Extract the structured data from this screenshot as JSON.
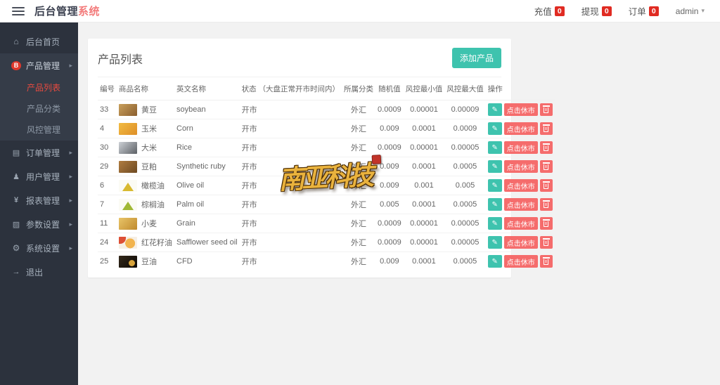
{
  "header": {
    "logo": {
      "primary": "后台管理",
      "accent": "系统"
    },
    "stats": [
      {
        "label": "充值",
        "count": "0"
      },
      {
        "label": "提现",
        "count": "0"
      },
      {
        "label": "订单",
        "count": "0"
      }
    ],
    "user": {
      "name": "admin",
      "caret": "▾"
    }
  },
  "sidebar": {
    "items": [
      {
        "label": "后台首页",
        "icon": "home-icon",
        "expandable": false
      },
      {
        "label": "产品管理",
        "icon": "product-icon",
        "expandable": true,
        "open": true,
        "children": [
          {
            "label": "产品列表",
            "active": true
          },
          {
            "label": "产品分类",
            "active": false
          },
          {
            "label": "风控管理",
            "active": false
          }
        ]
      },
      {
        "label": "订单管理",
        "icon": "order-icon",
        "expandable": true
      },
      {
        "label": "用户管理",
        "icon": "user-icon",
        "expandable": true
      },
      {
        "label": "报表管理",
        "icon": "report-icon",
        "expandable": true
      },
      {
        "label": "参数设置",
        "icon": "params-icon",
        "expandable": true
      },
      {
        "label": "系统设置",
        "icon": "settings-icon",
        "expandable": true
      },
      {
        "label": "退出",
        "icon": "logout-icon",
        "expandable": false
      }
    ]
  },
  "main": {
    "card_title": "产品列表",
    "add_button_label": "添加产品",
    "table": {
      "headers": [
        "编号",
        "商品名称",
        "英文名称",
        "状态 （大盘正常开市时间内）",
        "所属分类",
        "随机值",
        "风控最小值",
        "风控最大值",
        "操作"
      ],
      "actions": {
        "edit_icon": "✎",
        "close_label": "点击休市",
        "delete_icon": "trash-icon"
      },
      "rows": [
        {
          "id": "33",
          "name": "黄豆",
          "en": "soybean",
          "status": "开市",
          "category": "外汇",
          "random": "0.0009",
          "risk_min": "0.00001",
          "risk_max": "0.00009",
          "thumb": "soybean"
        },
        {
          "id": "4",
          "name": "玉米",
          "en": "Corn",
          "status": "开市",
          "category": "外汇",
          "random": "0.009",
          "risk_min": "0.0001",
          "risk_max": "0.0009",
          "thumb": "corn"
        },
        {
          "id": "30",
          "name": "大米",
          "en": "Rice",
          "status": "开市",
          "category": "外汇",
          "random": "0.0009",
          "risk_min": "0.00001",
          "risk_max": "0.00005",
          "thumb": "rice"
        },
        {
          "id": "29",
          "name": "豆粕",
          "en": "Synthetic ruby",
          "status": "开市",
          "category": "外汇",
          "random": "0.009",
          "risk_min": "0.0001",
          "risk_max": "0.0005",
          "thumb": "soybean-meal"
        },
        {
          "id": "6",
          "name": "橄榄油",
          "en": "Olive oil",
          "status": "开市",
          "category": "外汇",
          "random": "0.009",
          "risk_min": "0.001",
          "risk_max": "0.005",
          "thumb": "olive-oil"
        },
        {
          "id": "7",
          "name": "棕榈油",
          "en": "Palm oil",
          "status": "开市",
          "category": "外汇",
          "random": "0.005",
          "risk_min": "0.0001",
          "risk_max": "0.0005",
          "thumb": "palm-oil"
        },
        {
          "id": "11",
          "name": "小麦",
          "en": "Grain",
          "status": "开市",
          "category": "外汇",
          "random": "0.0009",
          "risk_min": "0.00001",
          "risk_max": "0.00005",
          "thumb": "wheat"
        },
        {
          "id": "24",
          "name": "红花籽油",
          "en": "Safflower seed oil",
          "status": "开市",
          "category": "外汇",
          "random": "0.0009",
          "risk_min": "0.00001",
          "risk_max": "0.00005",
          "thumb": "safflower"
        },
        {
          "id": "25",
          "name": "豆油",
          "en": "CFD",
          "status": "开市",
          "category": "外汇",
          "random": "0.009",
          "risk_min": "0.0001",
          "risk_max": "0.0005",
          "thumb": "soybean-oil"
        }
      ]
    }
  },
  "watermark": {
    "text": "南亚科技"
  },
  "colors": {
    "accent_teal": "#3ec3ae",
    "action_red": "#f56c6c",
    "badge_red": "#e02b22",
    "sidebar_bg": "#2c323d",
    "active_item_red": "#e74a3f",
    "logo_accent": "#f37b7b"
  }
}
